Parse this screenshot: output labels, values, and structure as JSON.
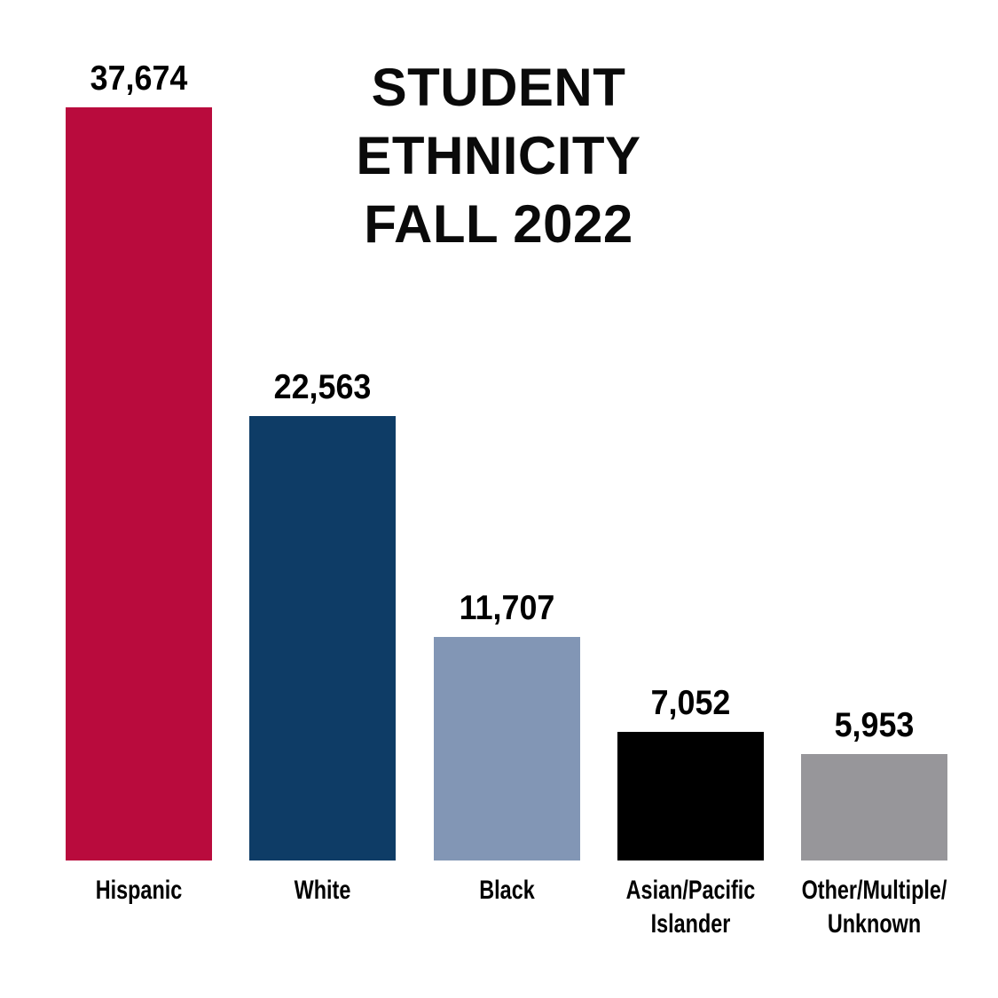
{
  "page": {
    "background_color": "#ffffff",
    "text_color": "#000000"
  },
  "title": {
    "text": "STUDENT ETHNICITY FALL 2022",
    "display": "STUDENT\nETHNICITY\nFALL 2022"
  },
  "chart_data": {
    "type": "bar",
    "title": "STUDENT ETHNICITY FALL 2022",
    "categories": [
      "Hispanic",
      "White",
      "Black",
      "Asian/Pacific Islander",
      "Other/Multiple/Unknown"
    ],
    "category_display": [
      "Hispanic",
      "White",
      "Black",
      "Asian/Pacific\nIslander",
      "Other/Multiple/\nUnknown"
    ],
    "category_slugs": [
      "hispanic",
      "white",
      "black",
      "asian-pacific-islander",
      "other-multiple-unknown"
    ],
    "values": [
      37674,
      22563,
      11707,
      7052,
      5953
    ],
    "value_labels": [
      "37,674",
      "22,563",
      "11,707",
      "7,052",
      "5,953"
    ],
    "bar_colors": [
      "#b90b3d",
      "#0e3c66",
      "#8296b5",
      "#000000",
      "#97969a"
    ],
    "xlabel": "",
    "ylabel": "",
    "ylim": [
      0,
      40000
    ],
    "grid": false,
    "legend": false,
    "orientation": "vertical",
    "value_label_position": "above-bar",
    "category_label_position": "below-bar"
  }
}
